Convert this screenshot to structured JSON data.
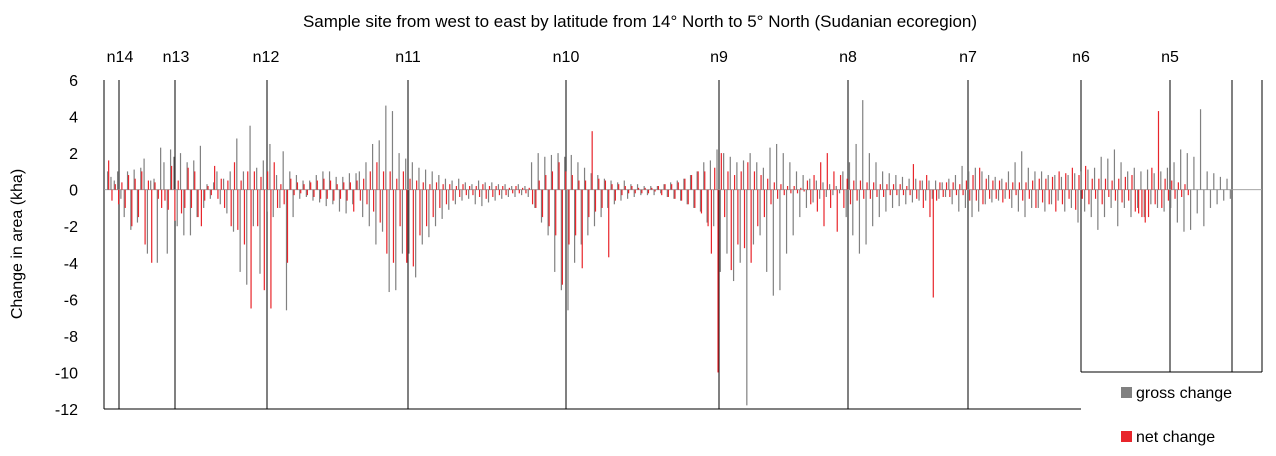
{
  "chart_data": {
    "type": "bar",
    "title": "Sample site from west  to east by latitude from 14° North to 5° North (Sudanian ecoregion)",
    "xlabel": "",
    "ylabel": "Change in area (kha)",
    "ylim": [
      -12,
      6
    ],
    "yticks": [
      6,
      4,
      2,
      0,
      -2,
      -4,
      -6,
      -8,
      -10,
      -12
    ],
    "latitude_bands": [
      "n14",
      "n13",
      "n12",
      "n11",
      "n10",
      "n9",
      "n8",
      "n7",
      "n6",
      "n5"
    ],
    "band_start_index": [
      0,
      14,
      30,
      76,
      126,
      176,
      216,
      256,
      296,
      320
    ],
    "legend": {
      "position": "bottom-right"
    },
    "series": [
      {
        "name": "gross change",
        "color": "#808080",
        "values": [
          1.0,
          0.7,
          0.5,
          1.0,
          -0.5,
          -1.5,
          1.0,
          -2.2,
          1.1,
          -1.8,
          1.2,
          1.7,
          -3.5,
          0.5,
          0.6,
          -4.0,
          2.3,
          1.5,
          -3.5,
          2.2,
          1.8,
          -2.0,
          2.0,
          -2.5,
          1.5,
          -2.5,
          1.6,
          -1.5,
          2.4,
          -1.0,
          0.3,
          -0.5,
          0.4,
          1.0,
          -0.8,
          0.6,
          -1.3,
          1.0,
          -2.3,
          2.8,
          -4.5,
          1.0,
          -5.2,
          3.5,
          -2.0,
          1.2,
          -4.6,
          1.6,
          -1.2,
          2.5,
          -1.5,
          0.8,
          -1.0,
          2.1,
          -6.6,
          1.0,
          -1.5,
          0.8,
          -0.5,
          0.5,
          -0.4,
          0.5,
          -0.6,
          0.8,
          -0.7,
          1.0,
          -0.9,
          1.0,
          -0.8,
          0.7,
          -1.2,
          0.7,
          -1.3,
          0.9,
          -0.8,
          0.9,
          1.0,
          -1.5,
          1.5,
          -2.0,
          2.5,
          -3.0,
          2.7,
          -2.3,
          4.6,
          -5.6,
          4.3,
          -5.5,
          2.0,
          -3.5,
          1.7,
          -3.5,
          1.5,
          -4.8,
          1.2,
          -3.0,
          1.1,
          -2.6,
          1.0,
          -2.0,
          0.8,
          -1.6,
          0.6,
          -1.1,
          0.5,
          -0.8,
          0.6,
          -0.6,
          0.4,
          -0.5,
          0.3,
          -0.8,
          0.5,
          -0.9,
          0.4,
          -0.7,
          0.4,
          -0.6,
          0.3,
          -0.5,
          0.3,
          -0.4,
          0.2,
          -0.4,
          0.3,
          -0.3,
          0.2,
          -0.4,
          1.5,
          -1.0,
          2.0,
          -1.8,
          1.8,
          -2.5,
          1.9,
          -4.5,
          2.0,
          -5.5,
          1.8,
          -6.6,
          1.9,
          -4.0,
          1.5,
          -3.0,
          1.2,
          -2.5,
          0.9,
          -2.0,
          0.8,
          -1.5,
          0.6,
          -1.0,
          0.5,
          -0.8,
          0.4,
          -0.6,
          0.5,
          -0.5,
          0.3,
          -0.4,
          0.3,
          -0.3,
          0.2,
          -0.3,
          0.2,
          -0.3,
          0.2,
          -0.2,
          0.3,
          -0.4,
          0.4,
          -0.5,
          0.5,
          -0.6,
          0.6,
          -0.8,
          0.8,
          -1.0,
          1.0,
          -1.2,
          1.5,
          -1.8,
          1.6,
          -2.0,
          2.2,
          -4.5,
          2.0,
          -3.5,
          1.8,
          -5.0,
          1.5,
          -4.0,
          1.6,
          -11.8,
          2.0,
          -3.0,
          1.5,
          -2.5,
          1.2,
          -4.5,
          2.3,
          -5.8,
          2.5,
          -5.5,
          2.0,
          -3.5,
          1.5,
          -2.5,
          1.0,
          -1.5,
          0.8,
          -1.0,
          0.6,
          -0.7,
          0.5,
          -0.5,
          0.4,
          -0.4,
          0.3,
          -0.3,
          0.2,
          -0.2,
          1.0,
          -1.5,
          1.5,
          -2.5,
          2.5,
          -3.5,
          4.9,
          -3.0,
          2.0,
          -2.0,
          1.5,
          -1.5,
          1.0,
          -1.2,
          0.9,
          -1.0,
          0.8,
          -0.9,
          0.7,
          -0.8,
          0.6,
          -0.7,
          0.6,
          -0.6,
          0.5,
          -0.6,
          0.5,
          -0.5,
          0.5,
          -0.5,
          0.4,
          -0.4,
          0.6,
          -0.8,
          0.8,
          -1.2,
          1.3,
          -1.0,
          1.0,
          -1.5,
          1.2,
          -1.2,
          1.0,
          -0.8,
          0.8,
          -0.7,
          0.7,
          -0.6,
          0.6,
          -0.5,
          1.0,
          -1.0,
          1.5,
          -1.2,
          2.1,
          -1.5,
          1.2,
          -1.0,
          1.0,
          -1.0,
          1.0,
          -1.2,
          0.8,
          -0.8,
          0.8,
          -0.6,
          0.7,
          -1.2,
          0.8,
          -1.0,
          0.9,
          -1.8,
          1.0,
          -1.2,
          1.1,
          -1.5,
          1.2,
          -2.2,
          1.8,
          -1.5,
          1.7,
          -1.0,
          2.2,
          -2.0,
          1.5,
          -1.0,
          1.0,
          -1.5,
          1.2,
          -1.0,
          1.0,
          -1.5,
          1.1,
          -0.8,
          0.9,
          -1.0,
          1.0,
          -1.2,
          1.2,
          -1.0,
          1.5,
          -1.8,
          2.2,
          -2.3,
          2.0,
          -2.2,
          1.8,
          -1.3,
          4.4,
          -2.0,
          1.0,
          -1.0,
          0.9,
          -0.8,
          0.7,
          -0.6,
          0.6,
          -0.5
        ]
      },
      {
        "name": "net change",
        "color": "#e8252b",
        "values": [
          1.6,
          -0.6,
          0.3,
          -0.8,
          0.4,
          -1.0,
          0.8,
          -2.0,
          0.6,
          -1.5,
          1.0,
          -3.0,
          0.5,
          -4.0,
          0.4,
          -0.5,
          -1.0,
          -0.6,
          -1.1,
          1.3,
          -1.7,
          0.5,
          -1.3,
          -1.0,
          1.2,
          -1.0,
          1.0,
          -1.5,
          -2.0,
          -0.6,
          0.2,
          -0.3,
          1.3,
          -0.5,
          0.6,
          -1.0,
          0.5,
          -2.0,
          1.5,
          -2.2,
          0.5,
          -3.0,
          1.0,
          -6.5,
          1.0,
          -2.0,
          0.7,
          -5.5,
          1.0,
          -6.5,
          1.5,
          -1.0,
          0.3,
          -0.8,
          -4.0,
          0.6,
          -0.3,
          0.4,
          -0.2,
          0.3,
          -0.3,
          0.4,
          -0.4,
          0.5,
          -0.5,
          0.6,
          -0.5,
          0.5,
          -0.6,
          0.3,
          -0.5,
          0.4,
          -0.6,
          0.4,
          -1.2,
          0.5,
          -0.6,
          0.6,
          -0.8,
          1.0,
          -1.2,
          1.5,
          -1.8,
          1.0,
          -3.5,
          1.0,
          -4.0,
          0.6,
          -2.0,
          1.0,
          -4.0,
          0.6,
          -4.2,
          0.5,
          -2.5,
          0.4,
          -2.0,
          0.3,
          -1.5,
          0.4,
          -1.0,
          0.3,
          -0.8,
          0.3,
          -0.6,
          0.2,
          -0.4,
          0.3,
          -0.3,
          0.2,
          -0.3,
          0.2,
          -0.4,
          0.3,
          -0.5,
          0.2,
          -0.4,
          0.2,
          -0.3,
          0.2,
          -0.3,
          0.1,
          -0.2,
          0.2,
          -0.2,
          0.1,
          -0.2,
          0.1,
          -0.8,
          -1.0,
          0.5,
          -1.5,
          0.8,
          -2.0,
          1.0,
          -2.5,
          1.5,
          -5.2,
          1.0,
          -3.0,
          0.8,
          -2.5,
          0.5,
          -4.3,
          0.5,
          -1.5,
          3.2,
          -1.2,
          0.6,
          -1.0,
          0.5,
          -3.7,
          0.3,
          -0.6,
          0.3,
          -0.3,
          0.2,
          -0.2,
          0.2,
          -0.2,
          0.1,
          -0.2,
          0.1,
          -0.2,
          0.1,
          -0.1,
          0.2,
          -0.3,
          0.3,
          -0.4,
          0.3,
          -0.5,
          0.4,
          -0.6,
          0.6,
          -0.8,
          0.8,
          -1.0,
          1.0,
          -1.3,
          1.0,
          -2.0,
          -3.5,
          1.2,
          -10.0,
          2.0,
          -1.5,
          1.0,
          -4.4,
          0.8,
          -3.0,
          1.0,
          -3.2,
          1.5,
          -4.0,
          1.0,
          -2.0,
          0.8,
          -1.5,
          0.6,
          -0.8,
          0.4,
          -0.5,
          0.3,
          -0.3,
          0.2,
          -0.2,
          0.2,
          -0.2,
          0.1,
          -0.1,
          0.5,
          -0.8,
          0.8,
          -1.2,
          1.5,
          -2.0,
          2.0,
          -1.0,
          1.0,
          -2.3,
          0.8,
          -1.0,
          0.6,
          -0.8,
          0.5,
          -0.6,
          0.5,
          -0.5,
          0.4,
          -0.5,
          0.4,
          -0.4,
          0.3,
          -0.4,
          0.3,
          -0.3,
          0.3,
          -0.3,
          0.3,
          -0.3,
          0.2,
          -0.3,
          1.4,
          -0.5,
          0.5,
          -1.0,
          0.8,
          -1.5,
          -5.9,
          -0.6,
          0.4,
          -0.4,
          0.4,
          -0.4,
          0.4,
          -0.3,
          0.3,
          -0.3,
          0.5,
          -0.6,
          0.8,
          -0.6,
          1.2,
          -0.8,
          0.6,
          -0.5,
          0.5,
          -0.5,
          0.5,
          -0.7,
          0.4,
          -0.5,
          0.4,
          -0.3,
          0.4,
          -0.6,
          0.4,
          -0.5,
          0.5,
          -1.0,
          0.6,
          -0.7,
          0.6,
          -0.8,
          0.7,
          -1.2,
          1.0,
          -0.8,
          0.9,
          -0.5,
          1.2,
          -1.1,
          0.8,
          -0.5,
          1.3,
          -0.8,
          0.6,
          -0.5,
          0.6,
          -0.8,
          0.6,
          -0.4,
          0.5,
          -0.6,
          0.6,
          -0.7,
          0.7,
          -0.6,
          0.8,
          -1.2,
          -1.3,
          -1.5,
          -1.8,
          -1.5,
          1.2,
          -0.8,
          4.3,
          -1.0,
          0.6,
          -0.6,
          0.5,
          -0.5,
          0.4,
          -0.4,
          0.3,
          -0.3
        ]
      }
    ]
  }
}
